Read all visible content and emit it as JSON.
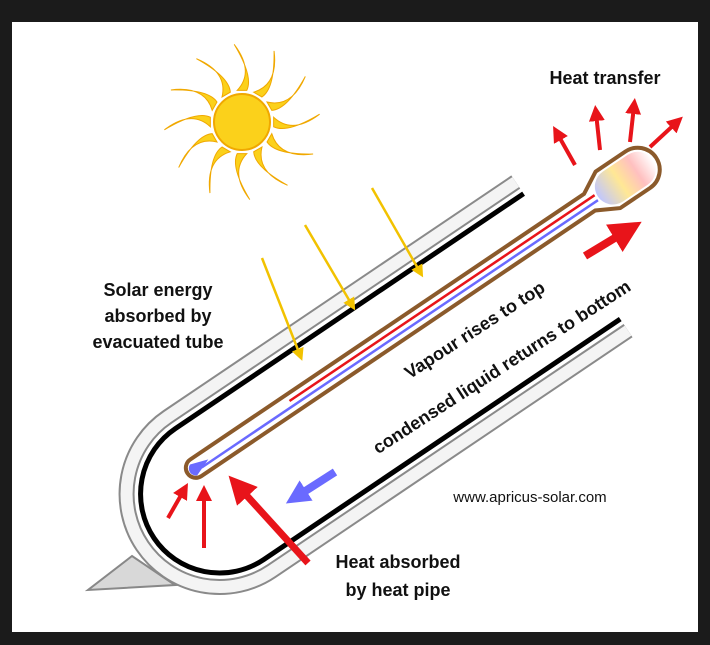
{
  "labels": {
    "heat_transfer": "Heat transfer",
    "solar_energy": [
      "Solar energy",
      "absorbed by",
      "evacuated tube"
    ],
    "vapour": "Vapour rises to top",
    "condensed": "condensed liquid returns to bottom",
    "website": "www.apricus-solar.com",
    "heat_absorbed": [
      "Heat absorbed",
      "by heat pipe"
    ]
  }
}
